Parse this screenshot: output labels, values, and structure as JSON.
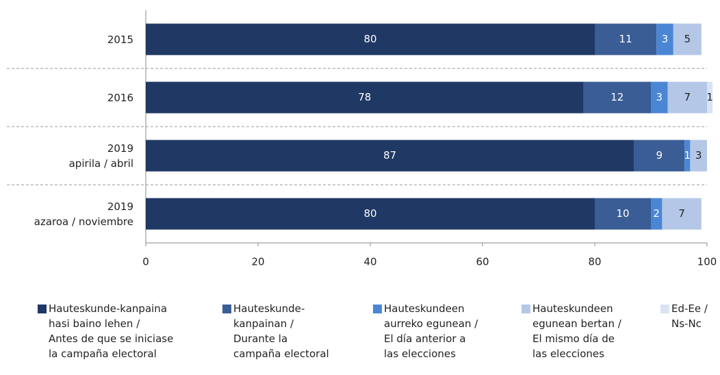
{
  "chart_data": {
    "type": "stacked-bar-horizontal",
    "categories": [
      "2015",
      "2016",
      "2019\napirila / abril",
      "2019\nazaroa / noviembre"
    ],
    "series": [
      {
        "name": "Hauteskunde-kanpaina\nhasi baino lehen /\nAntes de que se iniciase\nla campaña electoral",
        "color": "#203864",
        "values": [
          80,
          78,
          87,
          80
        ]
      },
      {
        "name": "Hauteskunde-\nkanpainan /\nDurante la\ncampaña electoral",
        "color": "#3a5d96",
        "values": [
          11,
          12,
          9,
          10
        ]
      },
      {
        "name": "Hauteskundeen\naurreko egunean /\nEl día anterior a\nlas elecciones",
        "color": "#4a86d4",
        "values": [
          3,
          3,
          1,
          2
        ]
      },
      {
        "name": "Hauteskundeen\negunean bertan /\nEl mismo día de\nlas elecciones",
        "color": "#b4c7e7",
        "values": [
          5,
          7,
          3,
          7
        ]
      },
      {
        "name": "Ed-Ee /\nNs-Nc",
        "color": "#dae3f3",
        "values": [
          null,
          1,
          null,
          null
        ]
      }
    ],
    "xlim": [
      0,
      100
    ],
    "xticks": [
      0,
      20,
      40,
      60,
      80,
      100
    ]
  }
}
